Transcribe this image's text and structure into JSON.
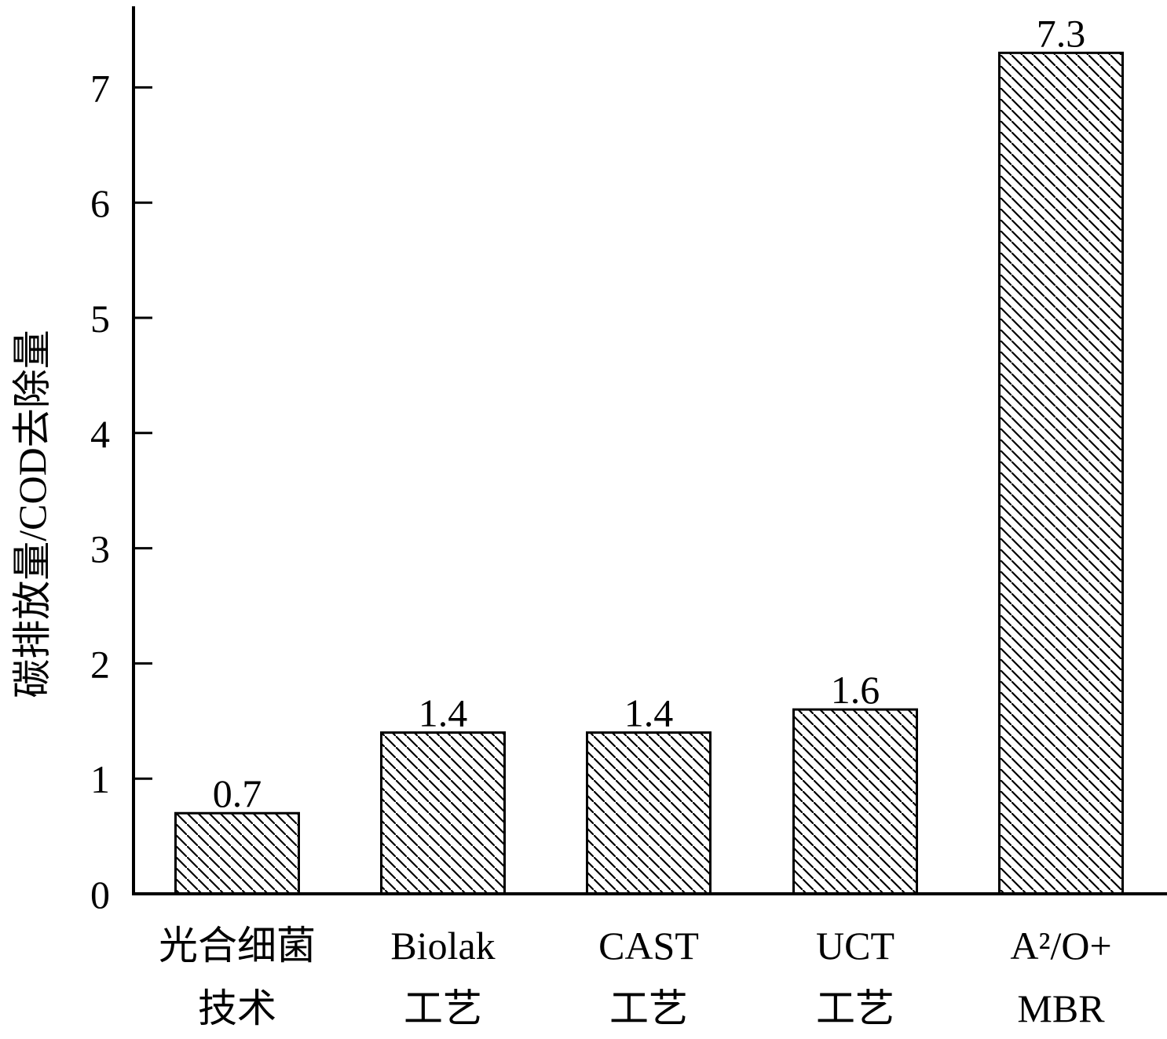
{
  "chart_data": {
    "type": "bar",
    "title": "",
    "xlabel": "",
    "ylabel": "碳排放量/COD去除量",
    "ylim": [
      0,
      7.7
    ],
    "yticks": [
      "0",
      "1",
      "2",
      "3",
      "4",
      "5",
      "6",
      "7"
    ],
    "grid": false,
    "legend": "none",
    "bar_fill": "diagonal hatch",
    "colors": {
      "bar_stroke": "#000000",
      "hatch": "#000000",
      "background": "#ffffff"
    },
    "categories": [
      {
        "line1": "光合细菌",
        "line2": "技术"
      },
      {
        "line1": "Biolak",
        "line2": "工艺"
      },
      {
        "line1": "CAST",
        "line2": "工艺"
      },
      {
        "line1": "UCT",
        "line2": "工艺"
      },
      {
        "line1": "A²/O+",
        "line2": "MBR"
      }
    ],
    "values": [
      0.7,
      1.4,
      1.4,
      1.6,
      7.3
    ],
    "value_labels": [
      "0.7",
      "1.4",
      "1.4",
      "1.6",
      "7.3"
    ]
  }
}
